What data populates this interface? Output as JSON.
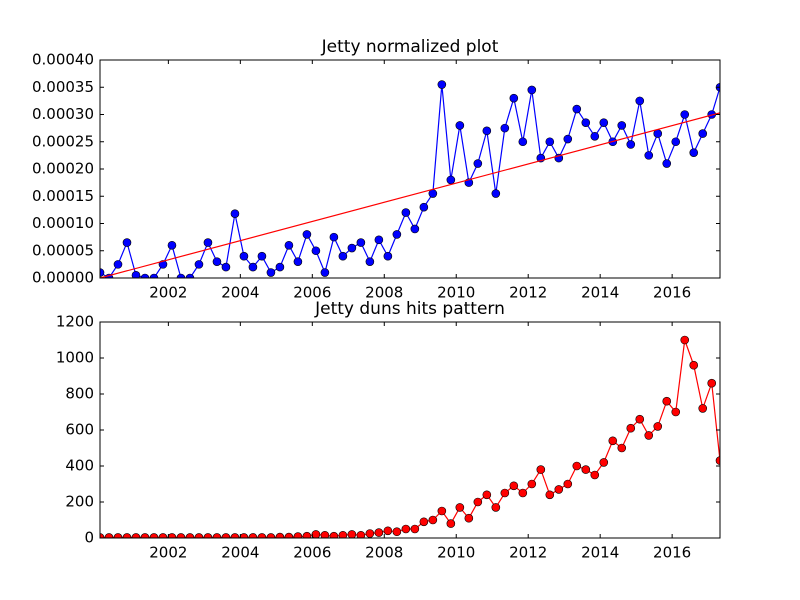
{
  "chart_data": [
    {
      "type": "line",
      "title": "Jetty normalized plot",
      "xlim": [
        2000.1,
        2017.33
      ],
      "xticks": [
        2002,
        2004,
        2006,
        2008,
        2010,
        2012,
        2014,
        2016
      ],
      "ylim": [
        0,
        0.0004
      ],
      "yticks": [
        {
          "value": 0,
          "label": "0.00000"
        },
        {
          "value": 5e-05,
          "label": "0.00005"
        },
        {
          "value": 0.0001,
          "label": "0.00010"
        },
        {
          "value": 0.00015,
          "label": "0.00015"
        },
        {
          "value": 0.0002,
          "label": "0.00020"
        },
        {
          "value": 0.00025,
          "label": "0.00025"
        },
        {
          "value": 0.0003,
          "label": "0.00030"
        },
        {
          "value": 0.00035,
          "label": "0.00035"
        },
        {
          "value": 0.0004,
          "label": "0.00040"
        }
      ],
      "series": [
        {
          "color": "#0000ff",
          "marker": true,
          "x": [
            2000.1,
            2000.35,
            2000.6,
            2000.85,
            2001.1,
            2001.35,
            2001.6,
            2001.85,
            2002.1,
            2002.35,
            2002.6,
            2002.85,
            2003.1,
            2003.35,
            2003.6,
            2003.85,
            2004.1,
            2004.35,
            2004.6,
            2004.85,
            2005.1,
            2005.35,
            2005.6,
            2005.85,
            2006.1,
            2006.35,
            2006.6,
            2006.85,
            2007.1,
            2007.35,
            2007.6,
            2007.85,
            2008.1,
            2008.35,
            2008.6,
            2008.85,
            2009.1,
            2009.35,
            2009.6,
            2009.85,
            2010.1,
            2010.35,
            2010.6,
            2010.85,
            2011.1,
            2011.35,
            2011.6,
            2011.85,
            2012.1,
            2012.35,
            2012.6,
            2012.85,
            2013.1,
            2013.35,
            2013.6,
            2013.85,
            2014.1,
            2014.35,
            2014.6,
            2014.85,
            2015.1,
            2015.35,
            2015.6,
            2015.85,
            2016.1,
            2016.35,
            2016.6,
            2016.85,
            2017.1,
            2017.33
          ],
          "values": [
            1e-05,
            0,
            2.5e-05,
            6.5e-05,
            5e-06,
            0,
            0,
            2.5e-05,
            6e-05,
            0,
            0,
            2.5e-05,
            6.5e-05,
            3e-05,
            2e-05,
            0.000118,
            4e-05,
            2e-05,
            4e-05,
            1e-05,
            2e-05,
            6e-05,
            3e-05,
            8e-05,
            5e-05,
            1e-05,
            7.5e-05,
            4e-05,
            5.5e-05,
            6.5e-05,
            3e-05,
            7e-05,
            4e-05,
            8e-05,
            0.00012,
            9e-05,
            0.00013,
            0.000155,
            0.000355,
            0.00018,
            0.00028,
            0.000175,
            0.00021,
            0.00027,
            0.000155,
            0.000275,
            0.00033,
            0.00025,
            0.000345,
            0.00022,
            0.00025,
            0.00022,
            0.000255,
            0.00031,
            0.000285,
            0.00026,
            0.000285,
            0.00025,
            0.00028,
            0.000245,
            0.000325,
            0.000225,
            0.000265,
            0.00021,
            0.00025,
            0.0003,
            0.00023,
            0.000265,
            0.0003,
            0.00035
          ]
        },
        {
          "color": "#ff0000",
          "marker": false,
          "x": [
            2000.1,
            2017.33
          ],
          "values": [
            0,
            0.000303
          ]
        }
      ]
    },
    {
      "type": "line",
      "title": "Jetty duns hits pattern",
      "xlim": [
        2000.1,
        2017.33
      ],
      "xticks": [
        2002,
        2004,
        2006,
        2008,
        2010,
        2012,
        2014,
        2016
      ],
      "ylim": [
        0,
        1200
      ],
      "yticks": [
        0,
        200,
        400,
        600,
        800,
        1000,
        1200
      ],
      "series": [
        {
          "color": "#ff0000",
          "marker": true,
          "x": [
            2000.1,
            2000.35,
            2000.6,
            2000.85,
            2001.1,
            2001.35,
            2001.6,
            2001.85,
            2002.1,
            2002.35,
            2002.6,
            2002.85,
            2003.1,
            2003.35,
            2003.6,
            2003.85,
            2004.1,
            2004.35,
            2004.6,
            2004.85,
            2005.1,
            2005.35,
            2005.6,
            2005.85,
            2006.1,
            2006.35,
            2006.6,
            2006.85,
            2007.1,
            2007.35,
            2007.6,
            2007.85,
            2008.1,
            2008.35,
            2008.6,
            2008.85,
            2009.1,
            2009.35,
            2009.6,
            2009.85,
            2010.1,
            2010.35,
            2010.6,
            2010.85,
            2011.1,
            2011.35,
            2011.6,
            2011.85,
            2012.1,
            2012.35,
            2012.6,
            2012.85,
            2013.1,
            2013.35,
            2013.6,
            2013.85,
            2014.1,
            2014.35,
            2014.6,
            2014.85,
            2015.1,
            2015.35,
            2015.6,
            2015.85,
            2016.1,
            2016.35,
            2016.6,
            2016.85,
            2017.1,
            2017.33
          ],
          "values": [
            3,
            3,
            3,
            3,
            3,
            3,
            3,
            3,
            3,
            3,
            3,
            3,
            3,
            3,
            3,
            3,
            3,
            3,
            3,
            3,
            5,
            5,
            8,
            10,
            20,
            15,
            10,
            15,
            20,
            15,
            25,
            30,
            40,
            35,
            50,
            50,
            90,
            100,
            150,
            80,
            170,
            110,
            200,
            240,
            170,
            250,
            290,
            250,
            300,
            380,
            240,
            270,
            300,
            400,
            380,
            350,
            420,
            540,
            500,
            610,
            660,
            570,
            620,
            760,
            700,
            1100,
            960,
            720,
            860,
            430
          ]
        }
      ]
    }
  ]
}
